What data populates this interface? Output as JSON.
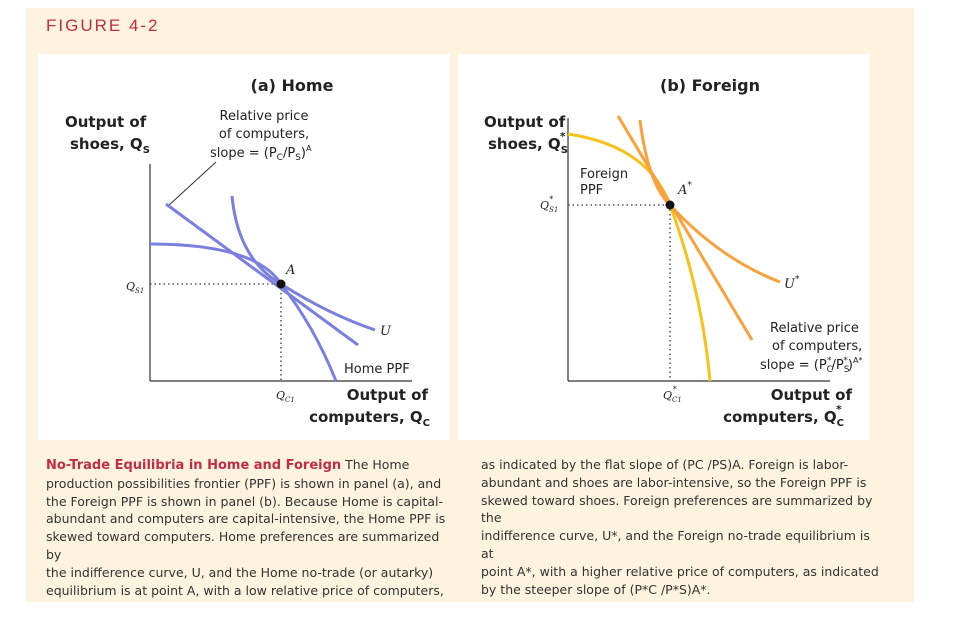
{
  "figure": {
    "label": "FIGURE 4-2"
  },
  "colors": {
    "home_curve": "#7b7fe0",
    "foreign_curve": "#f7a23c",
    "foreign_ppf": "#f7c21a",
    "accent": "#c22d46",
    "background": "#fdf3df"
  },
  "panel_a": {
    "title": "(a) Home",
    "y_axis_label_line1": "Output of",
    "y_axis_label_line2": "shoes, Q",
    "y_axis_sub": "S",
    "x_axis_label_line1": "Output of",
    "x_axis_label_line2": "computers, Q",
    "x_axis_sub": "C",
    "price_note_line1": "Relative price",
    "price_note_line2": "of computers,",
    "price_note_line3": "slope = (P",
    "price_note_sub1": "C",
    "price_note_mid": "/P",
    "price_note_sub2": "S",
    "price_note_end": ")",
    "price_note_sup": "A",
    "point_label": "A",
    "curve_label_u": "U",
    "ppf_label": "Home PPF",
    "tick_y": "Q",
    "tick_y_sub": "S1",
    "tick_x": "Q",
    "tick_x_sub": "C1"
  },
  "panel_b": {
    "title": "(b) Foreign",
    "y_axis_label_line1": "Output of",
    "y_axis_label_line2": "shoes, Q",
    "y_axis_sub": "S",
    "y_axis_star": "*",
    "x_axis_label_line1": "Output of",
    "x_axis_label_line2": "computers, Q",
    "x_axis_sub": "C",
    "x_axis_star": "*",
    "ppf_label_line1": "Foreign",
    "ppf_label_line2": "PPF",
    "point_label": "A",
    "point_star": "*",
    "curve_label_u": "U",
    "curve_star": "*",
    "price_note_line1": "Relative price",
    "price_note_line2": "of computers,",
    "price_note_line3": "slope = (P",
    "price_note_sub1": "C",
    "price_note_mid": "/P",
    "price_note_sub2": "S",
    "price_note_end": ")",
    "price_note_sup": "A*",
    "tick_y": "Q",
    "tick_y_sub": "S1",
    "tick_x": "Q",
    "tick_x_sub": "C1",
    "star": "*"
  },
  "caption": {
    "title": "No-Trade Equilibria in Home and Foreign",
    "left_lines": [
      "The Home",
      "production possibilities frontier (PPF) is shown in panel (a), and",
      "the Foreign PPF is shown in panel (b). Because Home is capital-",
      "abundant and computers are capital-intensive, the Home PPF is",
      "skewed toward computers. Home preferences are summarized by",
      "the indifference curve, U, and the Home no-trade (or autarky)",
      "equilibrium is at point A, with a low relative price of computers,"
    ],
    "right_lines": [
      "as indicated by the flat slope of (PC /PS)A. Foreign is labor-",
      "abundant and shoes are labor-intensive, so the Foreign PPF is",
      "skewed toward shoes. Foreign preferences are summarized by the",
      "indifference curve, U*, and the Foreign no-trade equilibrium is at",
      "point A*, with a higher relative price of computers, as indicated",
      "by the steeper slope of (P*C /P*S)A*."
    ]
  }
}
